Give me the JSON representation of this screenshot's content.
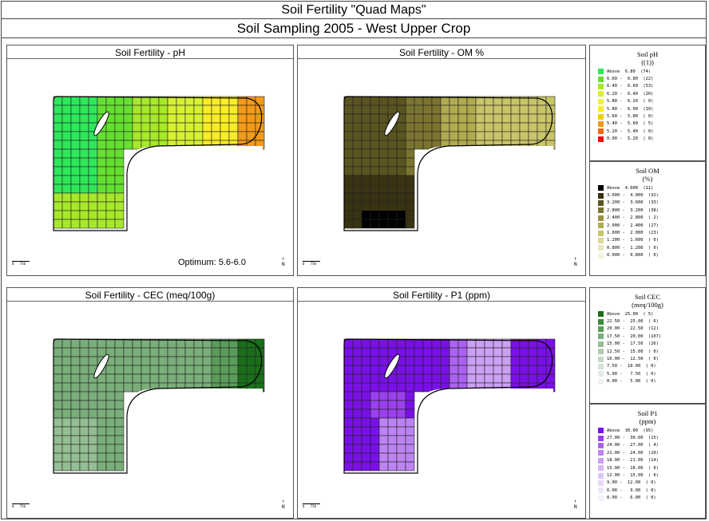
{
  "header": {
    "title": "Soil Fertility \"Quad Maps\"",
    "subtitle": "Soil Sampling 2005 - West Upper Crop"
  },
  "panels": [
    {
      "title": "Soil Fertility - pH",
      "note": "Optimum: 5.6-6.0"
    },
    {
      "title": "Soil Fertility - OM %"
    },
    {
      "title": "Soil Fertility - CEC (meq/100g)"
    },
    {
      "title": "Soil Fertility - P1 (ppm)"
    }
  ],
  "scale": {
    "zero": "0",
    "dist": "750"
  },
  "north": {
    "label": "N"
  },
  "legends": [
    {
      "title": "Soil pH",
      "subtitle": "((1))",
      "items": [
        {
          "color": "#2ee85a",
          "label": "Above  6.80  (74)"
        },
        {
          "color": "#66e030",
          "label": "6.60 -  6.80  (22)"
        },
        {
          "color": "#a8e82a",
          "label": "6.40 -  6.60  (53)"
        },
        {
          "color": "#d8f032",
          "label": "6.20 -  6.40  (20)"
        },
        {
          "color": "#f0f040",
          "label": "5.80 -  6.20  ( 0)"
        },
        {
          "color": "#f8ec28",
          "label": "5.80 -  6.00  (10)"
        },
        {
          "color": "#f2d000",
          "label": "5.60 -  5.80  ( 0)"
        },
        {
          "color": "#f29a1a",
          "label": "5.40 -  5.60  ( 5)"
        },
        {
          "color": "#f06810",
          "label": "5.20 -  5.40  ( 0)"
        },
        {
          "color": "#e81010",
          "label": "0.00 -  5.20  ( 0)"
        }
      ]
    },
    {
      "title": "Soil OM",
      "subtitle": "(%)",
      "items": [
        {
          "color": "#000000",
          "label": "Above  4.000  (11)"
        },
        {
          "color": "#3a3312",
          "label": "3.600 -  4.000  (32)"
        },
        {
          "color": "#5a5420",
          "label": "3.200 -  3.600  (33)"
        },
        {
          "color": "#7a7430",
          "label": "2.800 -  3.200  (38)"
        },
        {
          "color": "#9a9440",
          "label": "2.400 -  2.800  ( 2)"
        },
        {
          "color": "#b0ab50",
          "label": "2.000 -  2.400  (27)"
        },
        {
          "color": "#c8c468",
          "label": "1.600 -  2.000  (23)"
        },
        {
          "color": "#dad894",
          "label": "1.200 -  1.600  ( 0)"
        },
        {
          "color": "#e8e6bc",
          "label": "0.800 -  1.200  ( 0)"
        },
        {
          "color": "#f2f1dc",
          "label": "0.000 -  0.800  ( 0)"
        }
      ]
    },
    {
      "title": "Soil CEC",
      "subtitle": "(meq/100g)",
      "items": [
        {
          "color": "#1a6e1a",
          "label": "Above  25.00  ( 5)"
        },
        {
          "color": "#3a8a3a",
          "label": "22.50 -  25.00  ( 6)"
        },
        {
          "color": "#5a9c5a",
          "label": "20.00 -  22.50  (12)"
        },
        {
          "color": "#7aae7a",
          "label": "17.50 -  20.00  (107)"
        },
        {
          "color": "#94be94",
          "label": "15.00 -  17.50  (26)"
        },
        {
          "color": "#b0ccb0",
          "label": "12.50 -  15.00  ( 0)"
        },
        {
          "color": "#c6d8c6",
          "label": "10.00 -  12.50  ( 0)"
        },
        {
          "color": "#d8e2d8",
          "label": "7.50 -  10.00  ( 0)"
        },
        {
          "color": "#e4eae4",
          "label": "5.00 -   7.50  ( 0)"
        },
        {
          "color": "#f0f2f0",
          "label": "0.00 -   5.00  ( 0)"
        }
      ]
    },
    {
      "title": "Soil P1",
      "subtitle": "(ppm)",
      "items": [
        {
          "color": "#7a10e8",
          "label": "Above  30.00  (95)"
        },
        {
          "color": "#9a40ee",
          "label": "27.00 -  30.00  (15)"
        },
        {
          "color": "#ac62f0",
          "label": "24.00 -  27.00  ( 4)"
        },
        {
          "color": "#bc84f2",
          "label": "21.00 -  24.00  (20)"
        },
        {
          "color": "#caa0f4",
          "label": "18.00 -  21.00  (14)"
        },
        {
          "color": "#d6b6f6",
          "label": "15.00 -  18.00  ( 0)"
        },
        {
          "color": "#dcc8f6",
          "label": "12.00 -  15.00  ( 0)"
        },
        {
          "color": "#e4d8f8",
          "label": "9.00 -  12.00  ( 0)"
        },
        {
          "color": "#ece4fa",
          "label": "6.00 -   9.00  ( 0)"
        },
        {
          "color": "#f4f0fc",
          "label": "0.00 -   6.00  ( 0)"
        }
      ]
    }
  ]
}
